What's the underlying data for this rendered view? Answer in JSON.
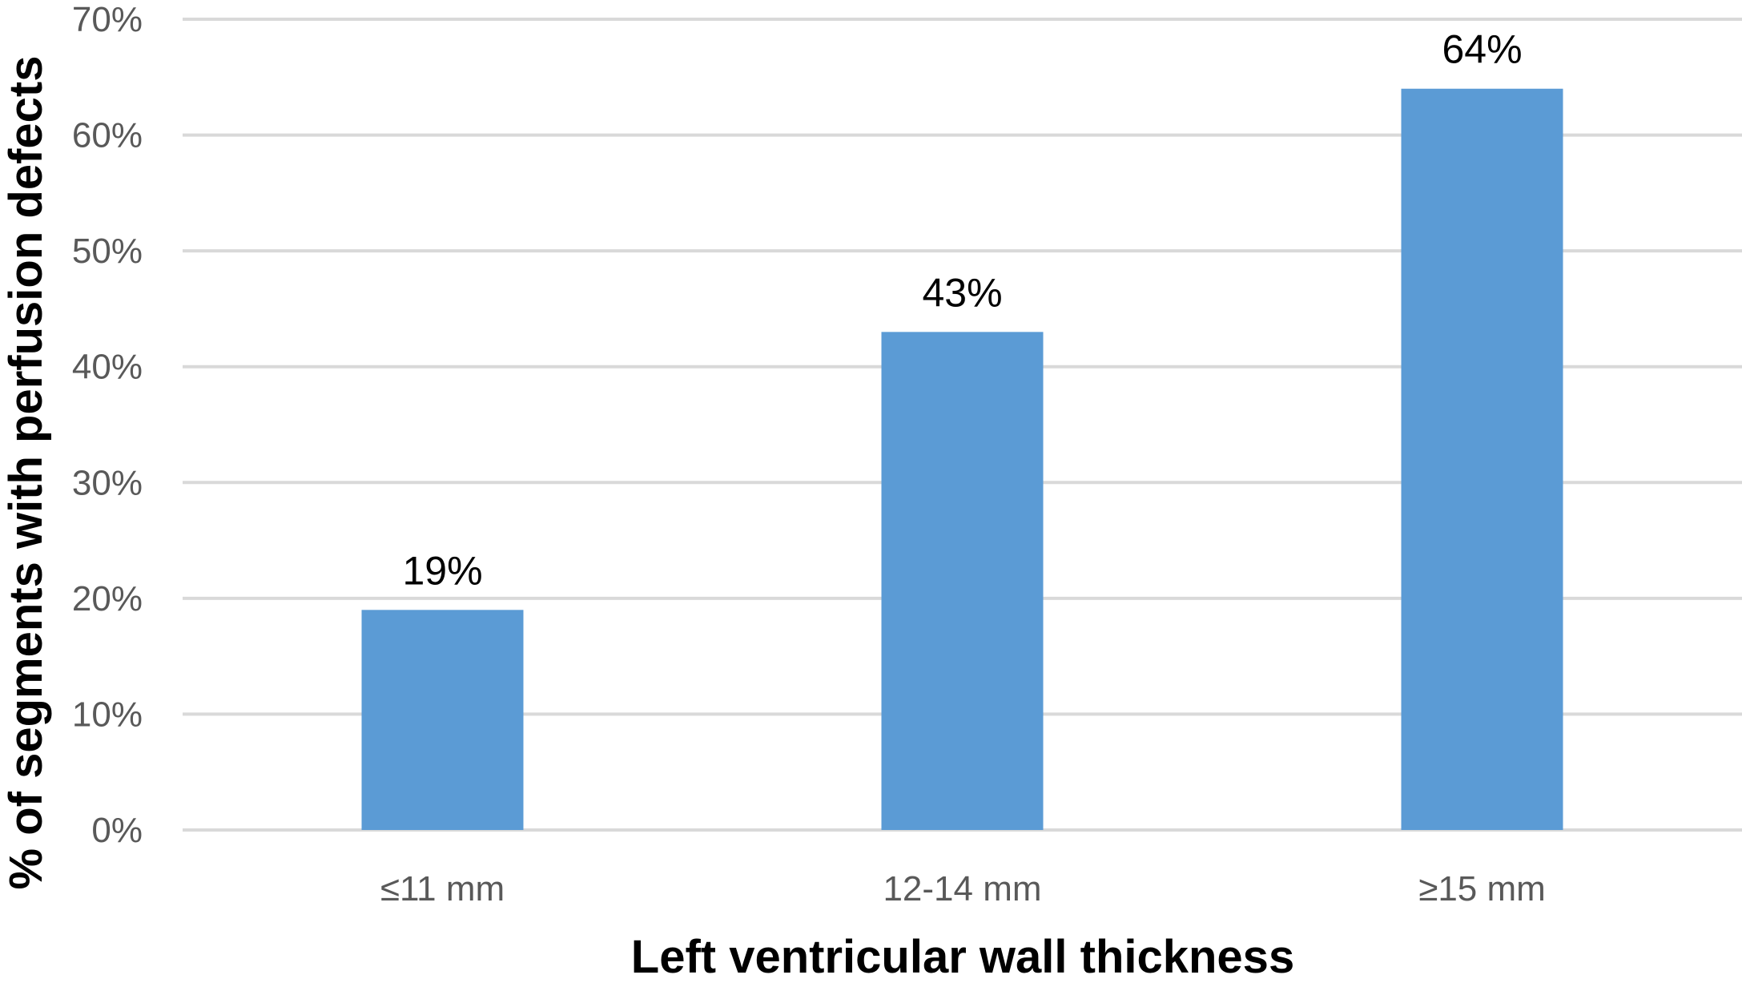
{
  "chart_data": {
    "type": "bar",
    "title": "",
    "xlabel": "Left ventricular wall  thickness",
    "ylabel": "% of segments with perfusion defects",
    "categories": [
      "≤11 mm",
      "12-14 mm",
      "≥15 mm"
    ],
    "values": [
      19,
      43,
      64
    ],
    "value_labels": [
      "19%",
      "43%",
      "64%"
    ],
    "ylim": [
      0,
      70
    ],
    "yticks": [
      0,
      10,
      20,
      30,
      40,
      50,
      60,
      70
    ],
    "ytick_labels": [
      "0%",
      "10%",
      "20%",
      "30%",
      "40%",
      "50%",
      "60%",
      "70%"
    ],
    "grid": true,
    "legend": "none",
    "colors": {
      "bar": "#5b9bd5",
      "grid": "#d9d9d9",
      "tick_text": "#595959",
      "title_text": "#000000"
    }
  }
}
